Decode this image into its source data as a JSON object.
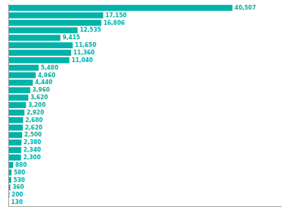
{
  "chart_data": {
    "type": "bar",
    "orientation": "horizontal",
    "categories": [
      null,
      null,
      null,
      null,
      null,
      null,
      null,
      null,
      null,
      null,
      null,
      null,
      null,
      null,
      null,
      null,
      null,
      null,
      null,
      null,
      null,
      null,
      null,
      null,
      null,
      null,
      null
    ],
    "values": [
      40507,
      17150,
      16806,
      12535,
      9415,
      11650,
      11360,
      11040,
      5480,
      4960,
      4440,
      3960,
      3620,
      3200,
      2920,
      2680,
      2620,
      2500,
      2380,
      2340,
      2300,
      880,
      580,
      530,
      360,
      200,
      130
    ],
    "value_labels": [
      "40,507",
      "17,150",
      "16,806",
      "12,535",
      "9,415",
      "11,650",
      "11,360",
      "11,040",
      "5,480",
      "4,960",
      "4,440",
      "3,960",
      "3,620",
      "3,200",
      "2,920",
      "2,680",
      "2,620",
      "2,500",
      "2,380",
      "2,340",
      "2,300",
      "880",
      "580",
      "530",
      "360",
      "200",
      "130"
    ],
    "color": "#00b2a9",
    "xlim": [
      0,
      49418.54
    ],
    "data_labels": true,
    "tick_labels": false,
    "grid": false
  }
}
